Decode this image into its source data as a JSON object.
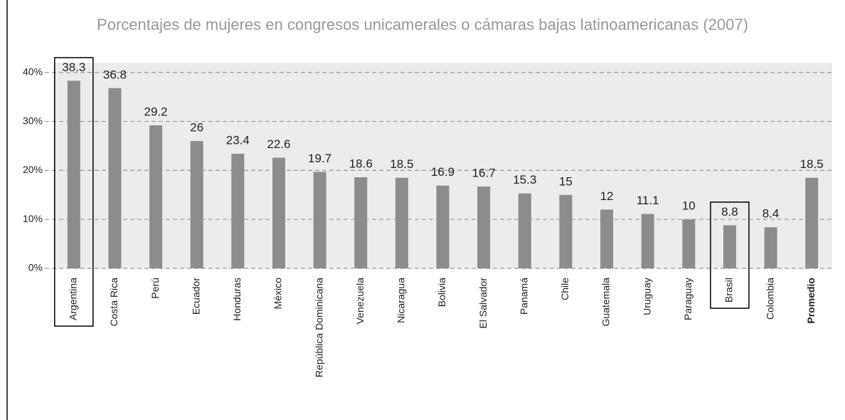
{
  "chart_data": {
    "type": "bar",
    "title": "Porcentajes de mujeres en congresos unicamerales o cámaras bajas latinoamericanas (2007)",
    "categories": [
      "Argentina",
      "Costa Rica",
      "Perú",
      "Ecuador",
      "Honduras",
      "México",
      "República Dominicana",
      "Venezuela",
      "Nicaragua",
      "Bolivia",
      "El Salvador",
      "Panamá",
      "Chile",
      "Guatemala",
      "Uruguay",
      "Paraguay",
      "Brasil",
      "Colombia",
      "Promedio"
    ],
    "values": [
      38.3,
      36.8,
      29.2,
      26,
      23.4,
      22.6,
      19.7,
      18.6,
      18.5,
      16.9,
      16.7,
      15.3,
      15,
      12,
      11.1,
      10,
      8.8,
      8.4,
      18.5
    ],
    "color": "#8c8c8c",
    "ylim": [
      0,
      42
    ],
    "yticks": [
      {
        "value": 0,
        "label": "0%"
      },
      {
        "value": 10,
        "label": "10%"
      },
      {
        "value": 20,
        "label": "20%"
      },
      {
        "value": 30,
        "label": "30%"
      },
      {
        "value": 40,
        "label": "40%"
      }
    ],
    "grid": true,
    "highlighted_categories": [
      "Argentina",
      "Brasil"
    ],
    "bold_categories": [
      "Promedio"
    ]
  }
}
